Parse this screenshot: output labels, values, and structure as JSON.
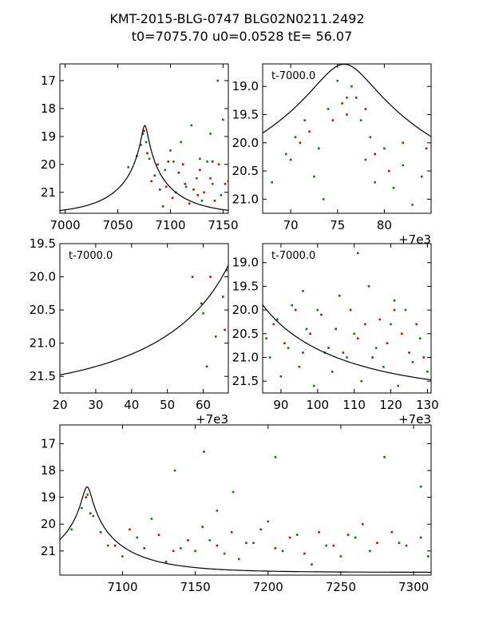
{
  "title": {
    "line1": "KMT-2015-BLG-0747 BLG02N0211.2492",
    "line2": "t0=7075.70 u0=0.0528 tE=  56.07"
  },
  "colors": {
    "green": "#1f6e1f",
    "red": "#b01515",
    "model": "#000000"
  },
  "chart_data": [
    {
      "type": "scatter",
      "panel": "top-left",
      "xlim": [
        6995,
        7155
      ],
      "ylim": [
        21.75,
        16.4
      ],
      "xticks": [
        7000,
        7050,
        7100,
        7150
      ],
      "xtick_labels": [
        "7000",
        "7050",
        "7100",
        "7150"
      ],
      "yticks": [
        17,
        18,
        19,
        20,
        21
      ],
      "ytick_labels": [
        "17",
        "18",
        "19",
        "20",
        "21"
      ],
      "annotation": "",
      "offset_text": "",
      "series": [
        {
          "name": "green",
          "points": [
            [
              7060,
              20.1
            ],
            [
              7068,
              19.7
            ],
            [
              7072,
              19.3
            ],
            [
              7074,
              18.9
            ],
            [
              7077,
              19.2
            ],
            [
              7080,
              19.8
            ],
            [
              7085,
              20.4
            ],
            [
              7090,
              20.9
            ],
            [
              7095,
              20.2
            ],
            [
              7100,
              19.5
            ],
            [
              7105,
              21.0
            ],
            [
              7110,
              19.2
            ],
            [
              7115,
              20.8
            ],
            [
              7120,
              18.6
            ],
            [
              7125,
              20.5
            ],
            [
              7130,
              21.3
            ],
            [
              7135,
              19.9
            ],
            [
              7140,
              20.7
            ],
            [
              7145,
              17.0
            ],
            [
              7150,
              18.4
            ],
            [
              7155,
              20.6
            ],
            [
              7093,
              21.5
            ],
            [
              7128,
              19.8
            ],
            [
              7148,
              21.1
            ],
            [
              7103,
              19.9
            ],
            [
              7138,
              18.9
            ]
          ]
        },
        {
          "name": "red",
          "points": [
            [
              7075,
              18.8
            ],
            [
              7078,
              19.6
            ],
            [
              7082,
              20.6
            ],
            [
              7088,
              20.0
            ],
            [
              7096,
              20.8
            ],
            [
              7102,
              21.2
            ],
            [
              7108,
              20.3
            ],
            [
              7112,
              20.0
            ],
            [
              7118,
              21.4
            ],
            [
              7122,
              20.9
            ],
            [
              7128,
              20.2
            ],
            [
              7132,
              21.0
            ],
            [
              7138,
              20.5
            ],
            [
              7142,
              21.3
            ],
            [
              7146,
              20.0
            ],
            [
              7152,
              20.7
            ],
            [
              7098,
              19.9
            ],
            [
              7114,
              20.7
            ],
            [
              7126,
              21.1
            ],
            [
              7140,
              19.9
            ]
          ]
        }
      ],
      "model": {
        "t0": 7075.7,
        "u0": 0.0528,
        "tE": 56.07,
        "base": 21.8,
        "tmin": 6995,
        "tmax": 7155
      }
    },
    {
      "type": "scatter",
      "panel": "top-right",
      "xlim": [
        67,
        85
      ],
      "ylim": [
        21.25,
        18.6
      ],
      "xticks": [
        70,
        75,
        80
      ],
      "xtick_labels": [
        "70",
        "75",
        "80"
      ],
      "yticks": [
        19.0,
        19.5,
        20.0,
        20.5,
        21.0
      ],
      "ytick_labels": [
        "19.0",
        "19.5",
        "20.0",
        "20.5",
        "21.0"
      ],
      "annotation": "t-7000.0",
      "offset_text": "+7e3",
      "series": [
        {
          "name": "green",
          "points": [
            [
              68.0,
              20.7
            ],
            [
              69.5,
              20.2
            ],
            [
              70.5,
              19.9
            ],
            [
              71.5,
              19.6
            ],
            [
              72.5,
              20.6
            ],
            [
              73.0,
              20.1
            ],
            [
              74.0,
              19.4
            ],
            [
              75.0,
              18.9
            ],
            [
              76.0,
              19.2
            ],
            [
              76.5,
              19.0
            ],
            [
              77.5,
              19.6
            ],
            [
              78.0,
              20.3
            ],
            [
              79.0,
              20.7
            ],
            [
              80.0,
              20.1
            ],
            [
              81.0,
              20.8
            ],
            [
              82.0,
              20.4
            ],
            [
              83.0,
              21.1
            ],
            [
              84.0,
              20.6
            ],
            [
              73.5,
              21.0
            ],
            [
              78.5,
              19.9
            ]
          ]
        },
        {
          "name": "red",
          "points": [
            [
              70.0,
              20.3
            ],
            [
              71.0,
              20.0
            ],
            [
              72.0,
              19.8
            ],
            [
              74.5,
              19.6
            ],
            [
              75.5,
              19.3
            ],
            [
              76.0,
              19.5
            ],
            [
              77.0,
              19.2
            ],
            [
              78.0,
              19.4
            ],
            [
              79.0,
              20.2
            ],
            [
              80.5,
              20.5
            ],
            [
              82.0,
              20.0
            ],
            [
              84.5,
              20.1
            ]
          ]
        }
      ],
      "model": {
        "t0": 75.7,
        "u0": 0.0528,
        "tE": 56.07,
        "base": 21.8,
        "tmin": 67,
        "tmax": 85
      }
    },
    {
      "type": "scatter",
      "panel": "middle-left",
      "xlim": [
        20,
        67
      ],
      "ylim": [
        21.75,
        19.5
      ],
      "xticks": [
        20,
        30,
        40,
        50,
        60
      ],
      "xtick_labels": [
        "20",
        "30",
        "40",
        "50",
        "60"
      ],
      "yticks": [
        19.5,
        20.0,
        20.5,
        21.0,
        21.5
      ],
      "ytick_labels": [
        "19.5",
        "20.0",
        "20.5",
        "21.0",
        "21.5"
      ],
      "annotation": "t-7000.0",
      "offset_text": "+7e3",
      "series": [
        {
          "name": "green",
          "points": [
            [
              59.5,
              20.4
            ],
            [
              60.0,
              20.55
            ],
            [
              61.0,
              21.35
            ],
            [
              63.5,
              20.9
            ],
            [
              65.5,
              20.3
            ],
            [
              66.5,
              19.9
            ]
          ]
        },
        {
          "name": "red",
          "points": [
            [
              57.0,
              20.0
            ],
            [
              62.0,
              20.0
            ],
            [
              66.0,
              20.8
            ]
          ]
        }
      ],
      "model": {
        "t0": 75.7,
        "u0": 0.0528,
        "tE": 56.07,
        "base": 21.8,
        "tmin": 20,
        "tmax": 67
      }
    },
    {
      "type": "scatter",
      "panel": "middle-right",
      "xlim": [
        85,
        131
      ],
      "ylim": [
        21.75,
        18.6
      ],
      "xticks": [
        90,
        100,
        110,
        120,
        130
      ],
      "xtick_labels": [
        "90",
        "100",
        "110",
        "120",
        "130"
      ],
      "yticks": [
        19.0,
        19.5,
        20.0,
        20.5,
        21.0,
        21.5
      ],
      "ytick_labels": [
        "19.0",
        "19.5",
        "20.0",
        "20.5",
        "21.0",
        "21.5"
      ],
      "annotation": "t-7000.0",
      "offset_text": "+7e3",
      "series": [
        {
          "name": "green",
          "points": [
            [
              86,
              20.6
            ],
            [
              87,
              21.0
            ],
            [
              89,
              20.2
            ],
            [
              90,
              21.4
            ],
            [
              92,
              20.8
            ],
            [
              93,
              19.9
            ],
            [
              95,
              21.2
            ],
            [
              97,
              20.4
            ],
            [
              99,
              21.6
            ],
            [
              100,
              20.0
            ],
            [
              102,
              20.9
            ],
            [
              104,
              21.3
            ],
            [
              106,
              19.7
            ],
            [
              108,
              21.0
            ],
            [
              110,
              20.5
            ],
            [
              112,
              21.5
            ],
            [
              114,
              19.5
            ],
            [
              116,
              20.8
            ],
            [
              118,
              21.2
            ],
            [
              120,
              20.3
            ],
            [
              122,
              21.6
            ],
            [
              124,
              20.0
            ],
            [
              126,
              21.1
            ],
            [
              128,
              20.6
            ],
            [
              130,
              21.3
            ],
            [
              96,
              19.6
            ],
            [
              111,
              18.8
            ],
            [
              121,
              19.8
            ]
          ]
        },
        {
          "name": "red",
          "points": [
            [
              88,
              20.3
            ],
            [
              91,
              20.7
            ],
            [
              94,
              20.0
            ],
            [
              96,
              20.9
            ],
            [
              98,
              20.5
            ],
            [
              101,
              20.1
            ],
            [
              103,
              20.8
            ],
            [
              105,
              20.4
            ],
            [
              107,
              20.9
            ],
            [
              109,
              20.0
            ],
            [
              111,
              20.6
            ],
            [
              113,
              20.3
            ],
            [
              115,
              21.0
            ],
            [
              117,
              20.2
            ],
            [
              119,
              20.7
            ],
            [
              121,
              20.0
            ],
            [
              123,
              20.5
            ],
            [
              125,
              20.9
            ],
            [
              127,
              20.3
            ],
            [
              129,
              21.0
            ]
          ]
        }
      ],
      "model": {
        "t0": 75.7,
        "u0": 0.0528,
        "tE": 56.07,
        "base": 21.8,
        "tmin": 85,
        "tmax": 131
      }
    },
    {
      "type": "scatter",
      "panel": "bottom",
      "xlim": [
        7057,
        7312
      ],
      "ylim": [
        21.9,
        16.3
      ],
      "xticks": [
        7100,
        7150,
        7200,
        7250,
        7300
      ],
      "xtick_labels": [
        "7100",
        "7150",
        "7200",
        "7250",
        "7300"
      ],
      "yticks": [
        17,
        18,
        19,
        20,
        21
      ],
      "ytick_labels": [
        "17",
        "18",
        "19",
        "20",
        "21"
      ],
      "annotation": "",
      "offset_text": "",
      "series": [
        {
          "name": "green",
          "points": [
            [
              7065,
              20.2
            ],
            [
              7072,
              19.4
            ],
            [
              7076,
              18.9
            ],
            [
              7080,
              19.7
            ],
            [
              7090,
              20.8
            ],
            [
              7100,
              21.2
            ],
            [
              7110,
              20.5
            ],
            [
              7120,
              19.8
            ],
            [
              7130,
              21.4
            ],
            [
              7136,
              18.0
            ],
            [
              7140,
              20.9
            ],
            [
              7150,
              21.0
            ],
            [
              7156,
              17.3
            ],
            [
              7160,
              20.6
            ],
            [
              7165,
              19.5
            ],
            [
              7170,
              21.1
            ],
            [
              7176,
              18.8
            ],
            [
              7180,
              21.3
            ],
            [
              7190,
              20.7
            ],
            [
              7200,
              19.9
            ],
            [
              7205,
              17.5
            ],
            [
              7210,
              21.0
            ],
            [
              7220,
              20.4
            ],
            [
              7230,
              21.5
            ],
            [
              7240,
              20.8
            ],
            [
              7250,
              21.2
            ],
            [
              7260,
              20.5
            ],
            [
              7270,
              21.0
            ],
            [
              7280,
              17.5
            ],
            [
              7290,
              20.7
            ],
            [
              7305,
              18.6
            ],
            [
              7310,
              21.2
            ]
          ]
        },
        {
          "name": "red",
          "points": [
            [
              7075,
              19.0
            ],
            [
              7078,
              19.6
            ],
            [
              7085,
              20.3
            ],
            [
              7095,
              20.8
            ],
            [
              7105,
              20.2
            ],
            [
              7115,
              20.9
            ],
            [
              7125,
              20.4
            ],
            [
              7135,
              21.0
            ],
            [
              7145,
              20.6
            ],
            [
              7155,
              20.1
            ],
            [
              7165,
              20.8
            ],
            [
              7175,
              20.3
            ],
            [
              7185,
              20.7
            ],
            [
              7195,
              20.2
            ],
            [
              7205,
              20.9
            ],
            [
              7215,
              20.5
            ],
            [
              7225,
              21.1
            ],
            [
              7235,
              20.3
            ],
            [
              7245,
              20.8
            ],
            [
              7255,
              20.4
            ],
            [
              7265,
              20.0
            ],
            [
              7275,
              20.7
            ],
            [
              7285,
              20.3
            ],
            [
              7295,
              20.8
            ],
            [
              7305,
              20.5
            ]
          ]
        }
      ],
      "model": {
        "t0": 7075.7,
        "u0": 0.0528,
        "tE": 56.07,
        "base": 21.8,
        "tmin": 7057,
        "tmax": 7312
      }
    }
  ]
}
